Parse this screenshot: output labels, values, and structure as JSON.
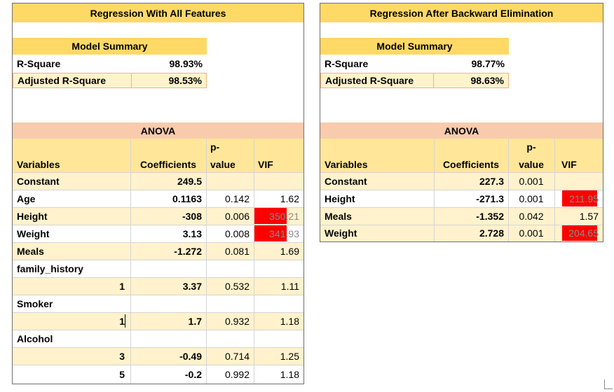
{
  "left": {
    "title": "Regression With All Features",
    "summary_title": "Model Summary",
    "r_square_label": "R-Square",
    "r_square_value": "98.93%",
    "adj_r_square_label": "Adjusted R-Square",
    "adj_r_square_value": "98.53%",
    "anova_title": "ANOVA",
    "headers": {
      "variables": "Variables",
      "coefficients": "Coefficients",
      "pvalue_top": "p-",
      "pvalue_bottom": "value",
      "vif": "VIF"
    },
    "rows": [
      {
        "name": "Constant",
        "coef": "249.5",
        "p": "",
        "vif": ""
      },
      {
        "name": "Age",
        "coef": "0.1163",
        "p": "0.142",
        "vif": "1.62"
      },
      {
        "name": "Height",
        "coef": "-308",
        "p": "0.006",
        "vif": "350.21"
      },
      {
        "name": "Weight",
        "coef": "3.13",
        "p": "0.008",
        "vif": "341.93"
      },
      {
        "name": "Meals",
        "coef": "-1.272",
        "p": "0.081",
        "vif": "1.69"
      },
      {
        "name": "family_history",
        "coef": "",
        "p": "",
        "vif": ""
      },
      {
        "name": "1",
        "coef": "3.37",
        "p": "0.532",
        "vif": "1.11"
      },
      {
        "name": "Smoker",
        "coef": "",
        "p": "",
        "vif": ""
      },
      {
        "name": "1",
        "coef": "1.7",
        "p": "0.932",
        "vif": "1.18"
      },
      {
        "name": "Alcohol",
        "coef": "",
        "p": "",
        "vif": ""
      },
      {
        "name": "3",
        "coef": "-0.49",
        "p": "0.714",
        "vif": "1.25"
      },
      {
        "name": "5",
        "coef": "-0.2",
        "p": "0.992",
        "vif": "1.18"
      }
    ]
  },
  "right": {
    "title": "Regression After Backward Elimination",
    "summary_title": "Model Summary",
    "r_square_label": "R-Square",
    "r_square_value": "98.77%",
    "adj_r_square_label": "Adjusted R-Square",
    "adj_r_square_value": "98.63%",
    "anova_title": "ANOVA",
    "headers": {
      "variables": "Variables",
      "coefficients": "Coefficients",
      "pvalue_top": "p-",
      "pvalue_bottom": "value",
      "vif": "VIF"
    },
    "rows": [
      {
        "name": "Constant",
        "coef": "227.3",
        "p": "0.001",
        "vif": ""
      },
      {
        "name": "Height",
        "coef": "-271.3",
        "p": "0.001",
        "vif": "211.95"
      },
      {
        "name": "Meals",
        "coef": "-1.352",
        "p": "0.042",
        "vif": "1.57"
      },
      {
        "name": "Weight",
        "coef": "2.728",
        "p": "0.001",
        "vif": "204.65"
      }
    ]
  },
  "colors": {
    "title_fill": "#ffd966",
    "header_fill": "#ffe699",
    "stripe_fill": "#fff2cc",
    "anova_fill": "#f8cbad",
    "high_vif_fill": "#ff0000"
  }
}
